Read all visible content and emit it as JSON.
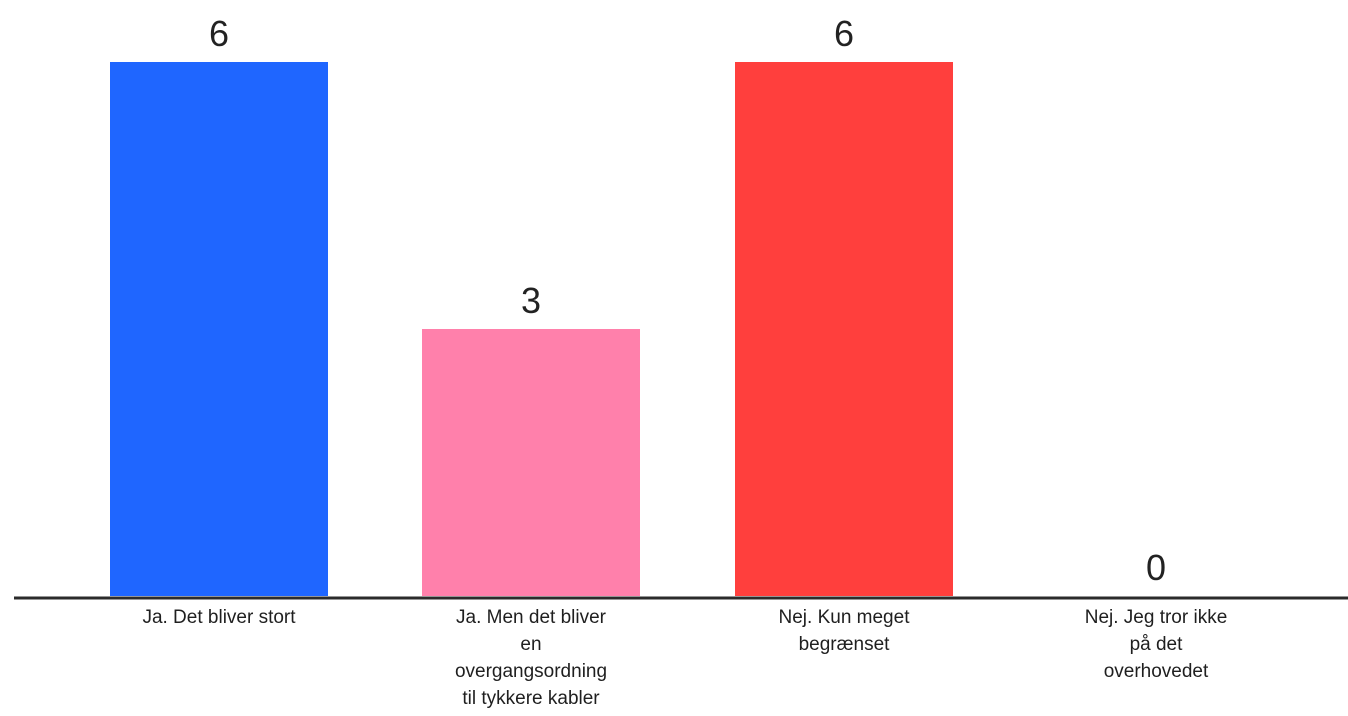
{
  "chart_data": {
    "type": "bar",
    "categories": [
      "Ja. Det bliver stort",
      "Ja. Men det bliver en overgangsordning til tykkere kabler",
      "Nej. Kun meget begrænset",
      "Nej. Jeg tror ikke på det overhovedet"
    ],
    "category_lines": [
      [
        "Ja. Det bliver stort"
      ],
      [
        "Ja. Men det bliver",
        "en",
        "overgangsordning",
        "til tykkere kabler"
      ],
      [
        "Nej. Kun meget",
        "begrænset"
      ],
      [
        "Nej. Jeg tror ikke",
        "på det",
        "overhovedet"
      ]
    ],
    "values": [
      6,
      3,
      6,
      0
    ],
    "data_labels": [
      "6",
      "3",
      "6",
      "0"
    ],
    "colors": [
      "#1f66ff",
      "#ff80ab",
      "#ff3f3d",
      "#c9d8ff"
    ],
    "ylim": [
      0,
      6
    ],
    "grid": false,
    "legend": "none",
    "title": "",
    "xlabel": "",
    "ylabel": ""
  }
}
